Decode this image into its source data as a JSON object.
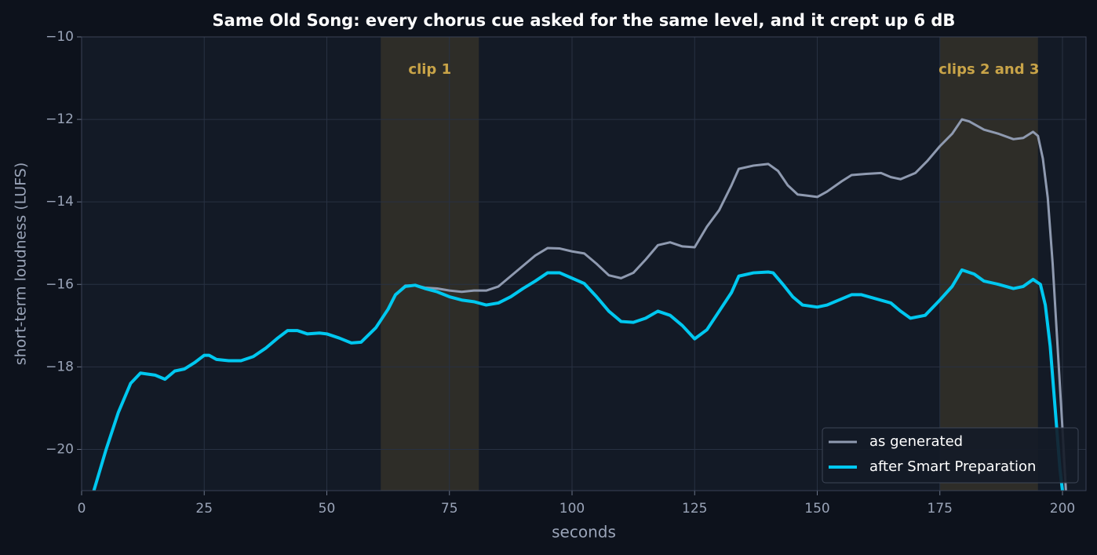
{
  "chart_data": {
    "type": "line",
    "title": "Same Old Song: every chorus cue asked for the same level, and it crept up 6 dB",
    "xlabel": "seconds",
    "ylabel": "short-term loudness (LUFS)",
    "xlim": [
      0,
      204.8
    ],
    "ylim": [
      -21,
      -10
    ],
    "xticks": [
      0,
      25,
      50,
      75,
      100,
      125,
      150,
      175,
      200
    ],
    "yticks": [
      {
        "value": -10,
        "label": "−10"
      },
      {
        "value": -12,
        "label": "−12"
      },
      {
        "value": -14,
        "label": "−14"
      },
      {
        "value": -16,
        "label": "−16"
      },
      {
        "value": -18,
        "label": "−18"
      },
      {
        "value": -20,
        "label": "−20"
      }
    ],
    "grid": true,
    "legend": "lower right",
    "spans": [
      {
        "label": "clip 1",
        "start": 61,
        "end": 81,
        "color": "#2e2d28"
      },
      {
        "label": "clips 2 and 3",
        "start": 175,
        "end": 195,
        "color": "#2e2d28"
      }
    ],
    "series": [
      {
        "name": "as generated",
        "color": "#8f9ab0",
        "width": 3,
        "x": [
          2.5,
          5,
          7.5,
          10,
          12,
          15,
          17,
          19,
          21,
          23,
          25,
          26,
          27.5,
          30,
          32.5,
          35,
          37.5,
          40,
          42,
          44,
          46,
          48.5,
          50,
          52.5,
          55,
          57,
          60,
          62.5,
          64,
          66,
          68,
          70,
          72.5,
          75,
          77.5,
          80,
          82.5,
          85,
          87.5,
          90,
          92.5,
          95,
          97.5,
          100,
          102.5,
          105,
          107.5,
          110,
          112.5,
          115,
          117.5,
          120,
          122.5,
          125,
          127.5,
          130,
          132.5,
          134,
          137,
          140,
          142,
          144,
          146,
          148,
          150,
          152,
          155,
          157,
          160,
          163,
          165,
          167,
          170,
          172.5,
          175,
          177.5,
          179.5,
          181,
          184,
          187,
          190,
          192,
          194,
          195,
          196,
          197,
          198,
          199,
          200,
          200.7
        ],
        "values": [
          -21.0,
          -20.0,
          -19.1,
          -18.4,
          -18.15,
          -18.2,
          -18.3,
          -18.1,
          -18.05,
          -17.9,
          -17.72,
          -17.72,
          -17.82,
          -17.85,
          -17.85,
          -17.75,
          -17.55,
          -17.3,
          -17.12,
          -17.12,
          -17.2,
          -17.18,
          -17.2,
          -17.3,
          -17.42,
          -17.4,
          -17.05,
          -16.6,
          -16.25,
          -16.03,
          -16.02,
          -16.08,
          -16.1,
          -16.15,
          -16.18,
          -16.15,
          -16.15,
          -16.05,
          -15.8,
          -15.55,
          -15.3,
          -15.12,
          -15.13,
          -15.2,
          -15.25,
          -15.5,
          -15.78,
          -15.85,
          -15.72,
          -15.4,
          -15.05,
          -14.98,
          -15.08,
          -15.1,
          -14.6,
          -14.2,
          -13.6,
          -13.2,
          -13.12,
          -13.08,
          -13.25,
          -13.6,
          -13.82,
          -13.85,
          -13.88,
          -13.75,
          -13.5,
          -13.35,
          -13.32,
          -13.3,
          -13.4,
          -13.45,
          -13.3,
          -13.0,
          -12.65,
          -12.35,
          -12.0,
          -12.05,
          -12.25,
          -12.35,
          -12.48,
          -12.45,
          -12.3,
          -12.4,
          -12.95,
          -13.9,
          -15.5,
          -17.5,
          -19.5,
          -21.0
        ]
      },
      {
        "name": "after Smart Preparation",
        "color": "#00c8f0",
        "width": 4,
        "x": [
          2.5,
          5,
          7.5,
          10,
          12,
          15,
          17,
          19,
          21,
          23,
          25,
          26,
          27.5,
          30,
          32.5,
          35,
          37.5,
          40,
          42,
          44,
          46,
          48.5,
          50,
          52.5,
          55,
          57,
          60,
          62.5,
          64,
          66,
          68,
          70,
          72.5,
          75,
          77.5,
          80,
          82.5,
          85,
          87.5,
          90,
          92.5,
          95,
          97.5,
          100,
          102.5,
          105,
          107.5,
          110,
          112.5,
          115,
          117.5,
          120,
          122.5,
          125,
          127.5,
          130,
          132.5,
          134,
          137,
          140,
          141,
          143,
          145,
          147,
          150,
          152,
          155,
          157,
          159,
          162,
          165,
          167,
          169,
          172,
          175,
          177.5,
          179.5,
          182,
          184,
          187,
          190,
          192,
          194,
          195.5,
          196.5,
          197.5,
          198.5,
          199.5,
          200
        ],
        "values": [
          -21.0,
          -20.0,
          -19.1,
          -18.4,
          -18.15,
          -18.2,
          -18.3,
          -18.1,
          -18.05,
          -17.9,
          -17.72,
          -17.72,
          -17.82,
          -17.85,
          -17.85,
          -17.75,
          -17.55,
          -17.3,
          -17.12,
          -17.12,
          -17.2,
          -17.18,
          -17.2,
          -17.3,
          -17.42,
          -17.4,
          -17.05,
          -16.6,
          -16.25,
          -16.05,
          -16.02,
          -16.1,
          -16.18,
          -16.3,
          -16.38,
          -16.42,
          -16.5,
          -16.45,
          -16.3,
          -16.1,
          -15.92,
          -15.72,
          -15.72,
          -15.85,
          -15.98,
          -16.3,
          -16.65,
          -16.9,
          -16.92,
          -16.82,
          -16.65,
          -16.75,
          -17.0,
          -17.32,
          -17.1,
          -16.65,
          -16.2,
          -15.8,
          -15.72,
          -15.7,
          -15.72,
          -16.0,
          -16.3,
          -16.5,
          -16.55,
          -16.5,
          -16.35,
          -16.25,
          -16.25,
          -16.35,
          -16.45,
          -16.65,
          -16.82,
          -16.75,
          -16.38,
          -16.05,
          -15.65,
          -15.75,
          -15.92,
          -16.0,
          -16.1,
          -16.05,
          -15.88,
          -16.0,
          -16.5,
          -17.5,
          -19.0,
          -20.5,
          -21.0
        ]
      }
    ]
  }
}
